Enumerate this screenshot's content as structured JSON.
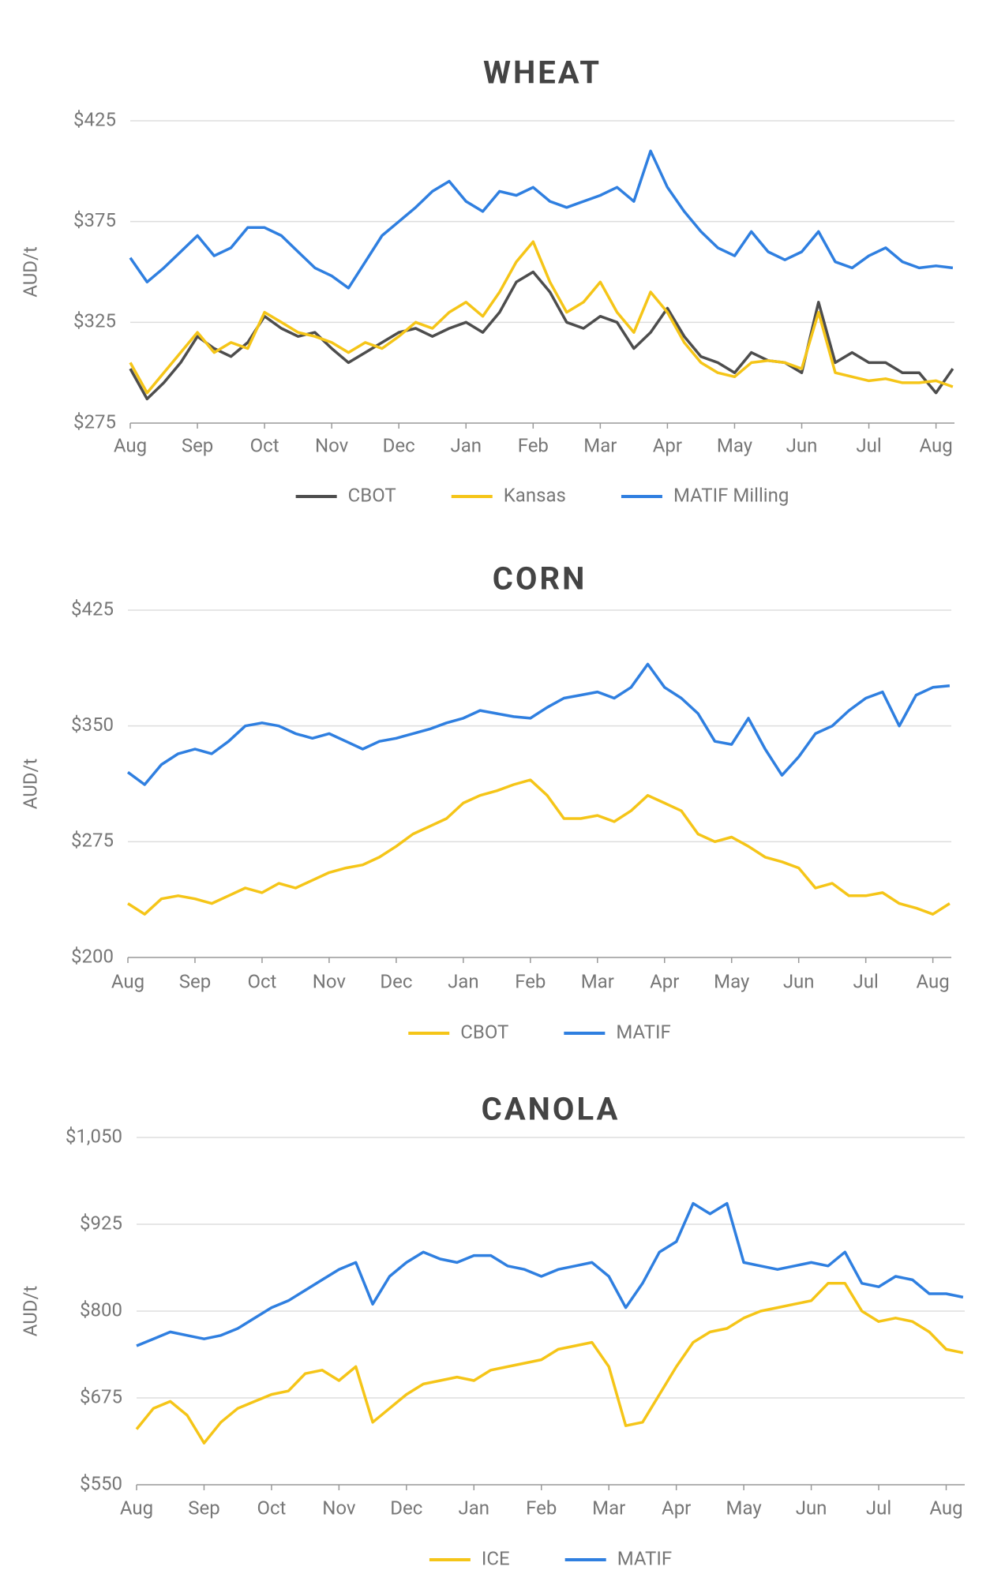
{
  "chart_data": [
    {
      "type": "line",
      "title": "WHEAT",
      "y_label": "AUD/t",
      "x": [
        "Aug",
        null,
        null,
        null,
        "Sep",
        null,
        null,
        null,
        "Oct",
        null,
        null,
        null,
        "Nov",
        null,
        null,
        null,
        "Dec",
        null,
        null,
        null,
        "Jan",
        null,
        null,
        null,
        "Feb",
        null,
        null,
        null,
        "Mar",
        null,
        null,
        null,
        "Apr",
        null,
        null,
        null,
        "May",
        null,
        null,
        null,
        "Jun",
        null,
        null,
        null,
        "Jul",
        null,
        null,
        null,
        "Aug",
        null
      ],
      "ylim": [
        275,
        425
      ],
      "yticks": [
        {
          "value": 275,
          "label": "$275"
        },
        {
          "value": 325,
          "label": "$325"
        },
        {
          "value": 375,
          "label": "$375"
        },
        {
          "value": 425,
          "label": "$425"
        }
      ],
      "grid": true,
      "series": [
        {
          "name": "CBOT",
          "color": "#4d4d4d",
          "values": [
            302,
            287,
            295,
            305,
            318,
            312,
            308,
            315,
            328,
            322,
            318,
            320,
            312,
            305,
            310,
            315,
            320,
            322,
            318,
            322,
            325,
            320,
            330,
            345,
            350,
            340,
            325,
            322,
            328,
            325,
            312,
            320,
            332,
            318,
            308,
            305,
            300,
            310,
            306,
            305,
            300,
            335,
            305,
            310,
            305,
            305,
            300,
            300,
            290,
            302
          ]
        },
        {
          "name": "Kansas",
          "color": "#f5c518",
          "values": [
            305,
            290,
            300,
            310,
            320,
            310,
            315,
            312,
            330,
            325,
            320,
            318,
            315,
            310,
            315,
            312,
            318,
            325,
            322,
            330,
            335,
            328,
            340,
            355,
            365,
            345,
            330,
            335,
            345,
            330,
            320,
            340,
            330,
            315,
            305,
            300,
            298,
            305,
            306,
            305,
            302,
            330,
            300,
            298,
            296,
            297,
            295,
            295,
            296,
            293
          ]
        },
        {
          "name": "MATIF Milling",
          "color": "#2f7fe0",
          "values": [
            357,
            345,
            352,
            360,
            368,
            358,
            362,
            372,
            372,
            368,
            360,
            352,
            348,
            342,
            355,
            368,
            375,
            382,
            390,
            395,
            385,
            380,
            390,
            388,
            392,
            385,
            382,
            385,
            388,
            392,
            385,
            410,
            392,
            380,
            370,
            362,
            358,
            370,
            360,
            356,
            360,
            370,
            355,
            352,
            358,
            362,
            355,
            352,
            353,
            352
          ]
        }
      ]
    },
    {
      "type": "line",
      "title": "CORN",
      "y_label": "AUD/t",
      "x": [
        "Aug",
        null,
        null,
        null,
        "Sep",
        null,
        null,
        null,
        "Oct",
        null,
        null,
        null,
        "Nov",
        null,
        null,
        null,
        "Dec",
        null,
        null,
        null,
        "Jan",
        null,
        null,
        null,
        "Feb",
        null,
        null,
        null,
        "Mar",
        null,
        null,
        null,
        "Apr",
        null,
        null,
        null,
        "May",
        null,
        null,
        null,
        "Jun",
        null,
        null,
        null,
        "Jul",
        null,
        null,
        null,
        "Aug",
        null
      ],
      "ylim": [
        200,
        425
      ],
      "yticks": [
        {
          "value": 200,
          "label": "$200"
        },
        {
          "value": 275,
          "label": "$275"
        },
        {
          "value": 350,
          "label": "$350"
        },
        {
          "value": 425,
          "label": "$425"
        }
      ],
      "grid": true,
      "series": [
        {
          "name": "CBOT",
          "color": "#f5c518",
          "values": [
            235,
            228,
            238,
            240,
            238,
            235,
            240,
            245,
            242,
            248,
            245,
            250,
            255,
            258,
            260,
            265,
            272,
            280,
            285,
            290,
            300,
            305,
            308,
            312,
            315,
            305,
            290,
            290,
            292,
            288,
            295,
            305,
            300,
            295,
            280,
            275,
            278,
            272,
            265,
            262,
            258,
            245,
            248,
            240,
            240,
            242,
            235,
            232,
            228,
            235
          ]
        },
        {
          "name": "MATIF",
          "color": "#2f7fe0",
          "values": [
            320,
            312,
            325,
            332,
            335,
            332,
            340,
            350,
            352,
            350,
            345,
            342,
            345,
            340,
            335,
            340,
            342,
            345,
            348,
            352,
            355,
            360,
            358,
            356,
            355,
            362,
            368,
            370,
            372,
            368,
            375,
            390,
            375,
            368,
            358,
            340,
            338,
            355,
            335,
            318,
            330,
            345,
            350,
            360,
            368,
            372,
            350,
            370,
            375,
            376
          ]
        }
      ]
    },
    {
      "type": "line",
      "title": "CANOLA",
      "y_label": "AUD/t",
      "x": [
        "Aug",
        null,
        null,
        null,
        "Sep",
        null,
        null,
        null,
        "Oct",
        null,
        null,
        null,
        "Nov",
        null,
        null,
        null,
        "Dec",
        null,
        null,
        null,
        "Jan",
        null,
        null,
        null,
        "Feb",
        null,
        null,
        null,
        "Mar",
        null,
        null,
        null,
        "Apr",
        null,
        null,
        null,
        "May",
        null,
        null,
        null,
        "Jun",
        null,
        null,
        null,
        "Jul",
        null,
        null,
        null,
        "Aug",
        null
      ],
      "ylim": [
        550,
        1050
      ],
      "yticks": [
        {
          "value": 550,
          "label": "$550"
        },
        {
          "value": 675,
          "label": "$675"
        },
        {
          "value": 800,
          "label": "$800"
        },
        {
          "value": 925,
          "label": "$925"
        },
        {
          "value": 1050,
          "label": "$1,050"
        }
      ],
      "grid": true,
      "series": [
        {
          "name": "ICE",
          "color": "#f5c518",
          "values": [
            630,
            660,
            670,
            650,
            610,
            640,
            660,
            670,
            680,
            685,
            710,
            715,
            700,
            720,
            640,
            660,
            680,
            695,
            700,
            705,
            700,
            715,
            720,
            725,
            730,
            745,
            750,
            755,
            720,
            635,
            640,
            680,
            720,
            755,
            770,
            775,
            790,
            800,
            805,
            810,
            815,
            840,
            840,
            800,
            785,
            790,
            785,
            770,
            745,
            740
          ]
        },
        {
          "name": "MATIF",
          "color": "#2f7fe0",
          "values": [
            750,
            760,
            770,
            765,
            760,
            765,
            775,
            790,
            805,
            815,
            830,
            845,
            860,
            870,
            810,
            850,
            870,
            885,
            875,
            870,
            880,
            880,
            865,
            860,
            850,
            860,
            865,
            870,
            850,
            805,
            840,
            885,
            900,
            955,
            940,
            955,
            870,
            865,
            860,
            865,
            870,
            865,
            885,
            840,
            835,
            850,
            845,
            825,
            825,
            820
          ]
        }
      ]
    }
  ]
}
